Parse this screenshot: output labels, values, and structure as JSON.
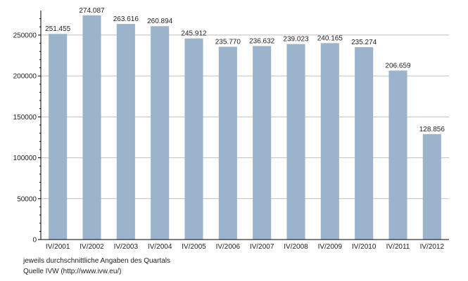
{
  "chart_data": {
    "type": "bar",
    "categories": [
      "IV/2001",
      "IV/2002",
      "IV/2003",
      "IV/2004",
      "IV/2005",
      "IV/2006",
      "IV/2007",
      "IV/2008",
      "IV/2009",
      "IV/2010",
      "IV/2011",
      "IV/2012"
    ],
    "values": [
      251455,
      274087,
      263616,
      260894,
      245912,
      235770,
      236632,
      239023,
      240165,
      235274,
      206659,
      128856
    ],
    "value_labels": [
      "251.455",
      "274.087",
      "263.616",
      "260.894",
      "245.912",
      "235.770",
      "236.632",
      "239.023",
      "240.165",
      "235.274",
      "206.659",
      "128.856"
    ],
    "ylim": [
      0,
      280000
    ],
    "yticks": [
      0,
      50000,
      100000,
      150000,
      200000,
      250000
    ],
    "ytick_labels": [
      "0",
      "50000",
      "100000",
      "150000",
      "200000",
      "250000"
    ],
    "grid": true,
    "bar_color": "#9bb4cc",
    "grid_color": "#bfbfbf"
  },
  "footnotes": {
    "line1": "jeweils durchschnittliche Angaben des Quartals",
    "line2": "Quelle IVW (http://www.ivw.eu/)"
  }
}
